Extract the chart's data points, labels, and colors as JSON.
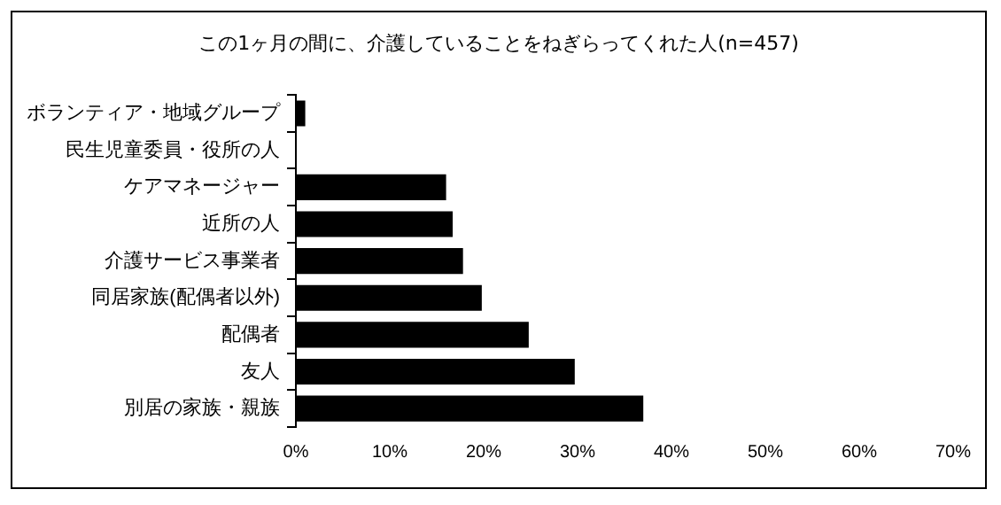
{
  "chart_data": {
    "type": "bar",
    "orientation": "horizontal",
    "title": "この1ヶ月の間に、介護していることをねぎらってくれた人(n=457)",
    "categories": [
      "ボランティア・地域グループ",
      "民生児童委員・役所の人",
      "ケアマネージャー",
      "近所の人",
      "介護サービス事業者",
      "同居家族(配偶者以外)",
      "配偶者",
      "友人",
      "別居の家族・親族"
    ],
    "values": [
      1.0,
      0,
      16.0,
      16.7,
      17.8,
      19.8,
      24.8,
      29.7,
      37.0
    ],
    "color": "#000000",
    "xlim": [
      0,
      70
    ],
    "xticks": [
      {
        "value": 0,
        "label": "0%"
      },
      {
        "value": 10,
        "label": "10%"
      },
      {
        "value": 20,
        "label": "20%"
      },
      {
        "value": 30,
        "label": "30%"
      },
      {
        "value": 40,
        "label": "40%"
      },
      {
        "value": 50,
        "label": "50%"
      },
      {
        "value": 60,
        "label": "60%"
      },
      {
        "value": 70,
        "label": "70%"
      }
    ],
    "grid": false,
    "legend": false
  }
}
